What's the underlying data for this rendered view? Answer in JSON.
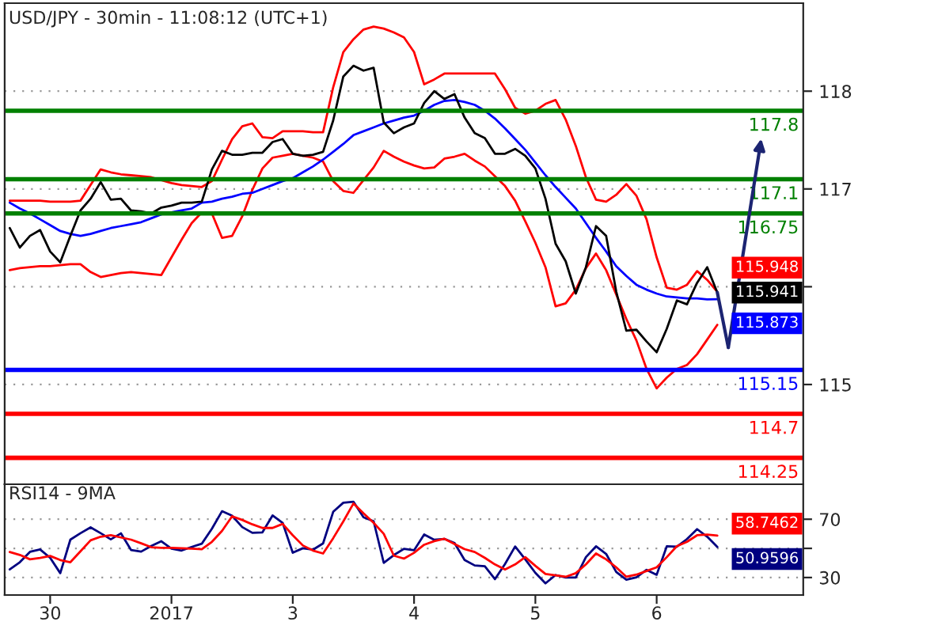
{
  "chart_data": [
    {
      "type": "line",
      "title": "USD/JPY - 30min - 11:08:12 (UTC+1)",
      "categories": [
        null,
        null,
        null,
        null,
        "30",
        null,
        null,
        null,
        null,
        null,
        null,
        null,
        null,
        null,
        null,
        null,
        "2017",
        null,
        null,
        null,
        null,
        null,
        null,
        null,
        null,
        null,
        null,
        null,
        "3",
        null,
        null,
        null,
        null,
        null,
        null,
        null,
        null,
        null,
        null,
        null,
        "4",
        null,
        null,
        null,
        null,
        null,
        null,
        null,
        null,
        null,
        null,
        null,
        "5",
        null,
        null,
        null,
        null,
        null,
        null,
        null,
        null,
        null,
        null,
        null,
        "6",
        null,
        null,
        null,
        null,
        null,
        null,
        null,
        null,
        null,
        null,
        null,
        null
      ],
      "series": [
        {
          "color": "#ff0000",
          "values": [
            116.88,
            116.88,
            116.88,
            116.88,
            116.87,
            116.87,
            116.87,
            116.88,
            117.04,
            117.2,
            117.17,
            117.15,
            117.14,
            117.13,
            117.12,
            117.09,
            117.06,
            117.04,
            117.03,
            117.02,
            117.08,
            117.3,
            117.51,
            117.64,
            117.67,
            117.53,
            117.52,
            117.59,
            117.59,
            117.59,
            117.58,
            117.58,
            118.04,
            118.4,
            118.53,
            118.63,
            118.66,
            118.64,
            118.6,
            118.55,
            118.4,
            118.07,
            118.12,
            118.18,
            118.18,
            118.18,
            118.18,
            118.18,
            118.18,
            118.02,
            117.83,
            117.77,
            117.8,
            117.87,
            117.91,
            117.71,
            117.44,
            117.12,
            116.89,
            116.87,
            116.94,
            117.05,
            116.93,
            116.69,
            116.3,
            115.99,
            115.97,
            116.02,
            116.16,
            116.07,
            115.948,
            null,
            null,
            null,
            null,
            null,
            null
          ],
          "value_labels": [
            null,
            null,
            null,
            null,
            null,
            null,
            null,
            null,
            null,
            null,
            null,
            null,
            null,
            null,
            null,
            null,
            null,
            null,
            null,
            null,
            null,
            null,
            null,
            null,
            null,
            null,
            null,
            null,
            null,
            null,
            null,
            null,
            null,
            null,
            null,
            null,
            null,
            null,
            null,
            null,
            null,
            null,
            null,
            null,
            null,
            null,
            null,
            null,
            null,
            null,
            null,
            null,
            null,
            null,
            null,
            null,
            null,
            null,
            null,
            null,
            null,
            null,
            null,
            null,
            null,
            null,
            null,
            null,
            null,
            null,
            "115.948",
            null,
            null,
            null,
            null,
            null,
            null
          ]
        },
        {
          "color": "#ff0000",
          "values": [
            116.17,
            116.19,
            116.2,
            116.21,
            116.21,
            116.22,
            116.23,
            116.23,
            116.15,
            116.1,
            116.12,
            116.14,
            116.15,
            116.14,
            116.13,
            116.12,
            116.3,
            116.48,
            116.65,
            116.76,
            116.75,
            116.5,
            116.52,
            116.72,
            116.99,
            117.21,
            117.32,
            117.34,
            117.36,
            117.34,
            117.32,
            117.28,
            117.08,
            116.98,
            116.96,
            117.09,
            117.22,
            117.39,
            117.33,
            117.28,
            117.24,
            117.21,
            117.22,
            117.31,
            117.33,
            117.36,
            117.29,
            117.23,
            117.13,
            117.03,
            116.88,
            116.67,
            116.45,
            116.2,
            115.8,
            115.83,
            115.97,
            116.19,
            116.34,
            116.17,
            115.92,
            115.67,
            115.45,
            115.16,
            114.96,
            115.07,
            115.16,
            115.2,
            115.31,
            115.46,
            115.61,
            null,
            null,
            null,
            null,
            null,
            null
          ]
        },
        {
          "color": "#0000ff",
          "values": [
            116.86,
            116.8,
            116.75,
            116.69,
            116.63,
            116.57,
            116.54,
            116.52,
            116.54,
            116.57,
            116.6,
            116.62,
            116.64,
            116.66,
            116.7,
            116.74,
            116.76,
            116.78,
            116.8,
            116.86,
            116.87,
            116.9,
            116.92,
            116.95,
            116.96,
            117.0,
            117.04,
            117.08,
            117.11,
            117.17,
            117.23,
            117.3,
            117.38,
            117.46,
            117.55,
            117.59,
            117.63,
            117.67,
            117.7,
            117.73,
            117.75,
            117.8,
            117.86,
            117.9,
            117.91,
            117.89,
            117.86,
            117.8,
            117.72,
            117.62,
            117.51,
            117.4,
            117.27,
            117.14,
            117.02,
            116.91,
            116.8,
            116.65,
            116.5,
            116.36,
            116.21,
            116.11,
            116.02,
            115.97,
            115.93,
            115.9,
            115.89,
            115.88,
            115.88,
            115.87,
            115.873,
            null,
            null,
            null,
            null,
            null,
            null
          ],
          "value_labels": [
            null,
            null,
            null,
            null,
            null,
            null,
            null,
            null,
            null,
            null,
            null,
            null,
            null,
            null,
            null,
            null,
            null,
            null,
            null,
            null,
            null,
            null,
            null,
            null,
            null,
            null,
            null,
            null,
            null,
            null,
            null,
            null,
            null,
            null,
            null,
            null,
            null,
            null,
            null,
            null,
            null,
            null,
            null,
            null,
            null,
            null,
            null,
            null,
            null,
            null,
            null,
            null,
            null,
            null,
            null,
            null,
            null,
            null,
            null,
            null,
            null,
            null,
            null,
            null,
            null,
            null,
            null,
            null,
            null,
            null,
            "115.873",
            null,
            null,
            null,
            null,
            null,
            null
          ]
        },
        {
          "color": "#000000",
          "values": [
            116.6,
            116.4,
            116.52,
            116.58,
            116.36,
            116.25,
            116.52,
            116.78,
            116.9,
            117.07,
            116.89,
            116.9,
            116.78,
            116.77,
            116.75,
            116.81,
            116.83,
            116.86,
            116.86,
            116.87,
            117.2,
            117.39,
            117.35,
            117.35,
            117.37,
            117.37,
            117.48,
            117.51,
            117.36,
            117.34,
            117.35,
            117.38,
            117.7,
            118.15,
            118.26,
            118.21,
            118.24,
            117.68,
            117.57,
            117.63,
            117.67,
            117.88,
            118.0,
            117.92,
            117.97,
            117.73,
            117.57,
            117.52,
            117.36,
            117.36,
            117.41,
            117.34,
            117.21,
            116.9,
            116.44,
            116.26,
            115.93,
            116.2,
            116.62,
            116.52,
            115.95,
            115.55,
            115.56,
            115.44,
            115.33,
            115.57,
            115.86,
            115.82,
            116.04,
            116.2,
            115.941,
            null,
            null,
            null,
            null,
            null,
            null
          ],
          "value_labels": [
            null,
            null,
            null,
            null,
            null,
            null,
            null,
            null,
            null,
            null,
            null,
            null,
            null,
            null,
            null,
            null,
            null,
            null,
            null,
            null,
            null,
            null,
            null,
            null,
            null,
            null,
            null,
            null,
            null,
            null,
            null,
            null,
            null,
            null,
            null,
            null,
            null,
            null,
            null,
            null,
            null,
            null,
            null,
            null,
            null,
            null,
            null,
            null,
            null,
            null,
            null,
            null,
            null,
            null,
            null,
            null,
            null,
            null,
            null,
            null,
            null,
            null,
            null,
            null,
            null,
            null,
            null,
            null,
            null,
            null,
            "115.941",
            null,
            null,
            null,
            null,
            null,
            null
          ]
        }
      ],
      "ref_lines": [
        {
          "axis": "y",
          "value": 117.8,
          "label": "117.8",
          "color": "#008000"
        },
        {
          "axis": "y",
          "value": 117.1,
          "label": "117.1",
          "color": "#008000"
        },
        {
          "axis": "y",
          "value": 116.75,
          "label": "116.75",
          "color": "#008000"
        },
        {
          "axis": "y",
          "value": 115.15,
          "label": "115.15",
          "color": "#0000ff"
        },
        {
          "axis": "y",
          "value": 114.7,
          "label": "114.7",
          "color": "#ff0000"
        },
        {
          "axis": "y",
          "value": 114.25,
          "label": "114.25",
          "color": "#ff0000"
        }
      ],
      "ylim": [
        113.98,
        118.9
      ],
      "yticks": [
        118,
        117,
        {
          "value": 116,
          "label": null
        },
        115
      ],
      "tick_labels": "y",
      "grid": "y"
    },
    {
      "type": "line",
      "title": "RSI14 - 9MA",
      "categories": [
        null,
        null,
        null,
        null,
        "30",
        null,
        null,
        null,
        null,
        null,
        null,
        null,
        null,
        null,
        null,
        null,
        "2017",
        null,
        null,
        null,
        null,
        null,
        null,
        null,
        null,
        null,
        null,
        null,
        "3",
        null,
        null,
        null,
        null,
        null,
        null,
        null,
        null,
        null,
        null,
        null,
        "4",
        null,
        null,
        null,
        null,
        null,
        null,
        null,
        null,
        null,
        null,
        null,
        "5",
        null,
        null,
        null,
        null,
        null,
        null,
        null,
        null,
        null,
        null,
        null,
        "6",
        null,
        null,
        null,
        null,
        null,
        null,
        null,
        null,
        null,
        null,
        null,
        null
      ],
      "series": [
        {
          "color": "#000080",
          "values": [
            35.6,
            40.5,
            47.6,
            49.3,
            43.5,
            33.0,
            56.0,
            60.4,
            64.4,
            60.4,
            56.2,
            60.3,
            48.9,
            47.8,
            51.7,
            54.9,
            49.8,
            48.5,
            51.0,
            53.2,
            63.5,
            75.5,
            72.4,
            64.6,
            60.7,
            61.0,
            72.6,
            67.5,
            47.0,
            50.1,
            49.1,
            53.4,
            75.1,
            81.3,
            82.0,
            71.3,
            68.6,
            40.1,
            45.4,
            49.7,
            48.7,
            59.5,
            55.9,
            56.5,
            53.7,
            42.0,
            38.3,
            37.7,
            28.9,
            39.3,
            51.3,
            42.5,
            33.2,
            26.0,
            31.7,
            30.0,
            30.0,
            44.0,
            51.4,
            46.2,
            33.8,
            28.5,
            30.2,
            35.3,
            31.9,
            51.4,
            51.2,
            56.4,
            63.2,
            58.0,
            50.9596,
            null,
            null,
            null,
            null,
            null,
            null
          ],
          "value_labels": [
            null,
            null,
            null,
            null,
            null,
            null,
            null,
            null,
            null,
            null,
            null,
            null,
            null,
            null,
            null,
            null,
            null,
            null,
            null,
            null,
            null,
            null,
            null,
            null,
            null,
            null,
            null,
            null,
            null,
            null,
            null,
            null,
            null,
            null,
            null,
            null,
            null,
            null,
            null,
            null,
            null,
            null,
            null,
            null,
            null,
            null,
            null,
            null,
            null,
            null,
            null,
            null,
            null,
            null,
            null,
            null,
            null,
            null,
            null,
            null,
            null,
            null,
            null,
            null,
            null,
            null,
            null,
            null,
            null,
            null,
            "50.9596",
            null,
            null,
            null,
            null,
            null,
            null
          ]
        },
        {
          "color": "#ff0000",
          "values": [
            47.5,
            45.5,
            42.5,
            43.5,
            44.8,
            42.0,
            40.5,
            48.0,
            55.5,
            58.0,
            59.0,
            57.5,
            56.0,
            53.5,
            50.8,
            50.4,
            50.4,
            50.1,
            49.8,
            49.4,
            54.5,
            62.0,
            72.0,
            69.5,
            66.5,
            64.0,
            64.0,
            66.8,
            59.0,
            52.0,
            48.5,
            46.5,
            57.0,
            68.5,
            80.8,
            74.0,
            67.5,
            60.0,
            45.0,
            43.0,
            47.0,
            52.5,
            55.0,
            56.6,
            53.0,
            49.5,
            47.5,
            43.5,
            39.0,
            35.5,
            39.0,
            44.0,
            38.0,
            32.5,
            31.5,
            30.5,
            33.0,
            39.0,
            46.5,
            42.5,
            37.0,
            30.5,
            32.0,
            34.5,
            37.0,
            44.0,
            51.5,
            54.5,
            59.0,
            59.4,
            58.7462,
            null,
            null,
            null,
            null,
            null,
            null
          ],
          "value_labels": [
            null,
            null,
            null,
            null,
            null,
            null,
            null,
            null,
            null,
            null,
            null,
            null,
            null,
            null,
            null,
            null,
            null,
            null,
            null,
            null,
            null,
            null,
            null,
            null,
            null,
            null,
            null,
            null,
            null,
            null,
            null,
            null,
            null,
            null,
            null,
            null,
            null,
            null,
            null,
            null,
            null,
            null,
            null,
            null,
            null,
            null,
            null,
            null,
            null,
            null,
            null,
            null,
            null,
            null,
            null,
            null,
            null,
            null,
            null,
            null,
            null,
            null,
            null,
            null,
            null,
            null,
            null,
            null,
            null,
            null,
            "58.7462",
            null,
            null,
            null,
            null,
            null,
            null
          ]
        }
      ],
      "ylim": [
        18,
        94
      ],
      "yticks": [
        {
          "value": 30,
          "label": "30"
        },
        {
          "value": 50,
          "label": null
        },
        {
          "value": 70,
          "label": "70"
        }
      ],
      "grid": "y"
    }
  ]
}
